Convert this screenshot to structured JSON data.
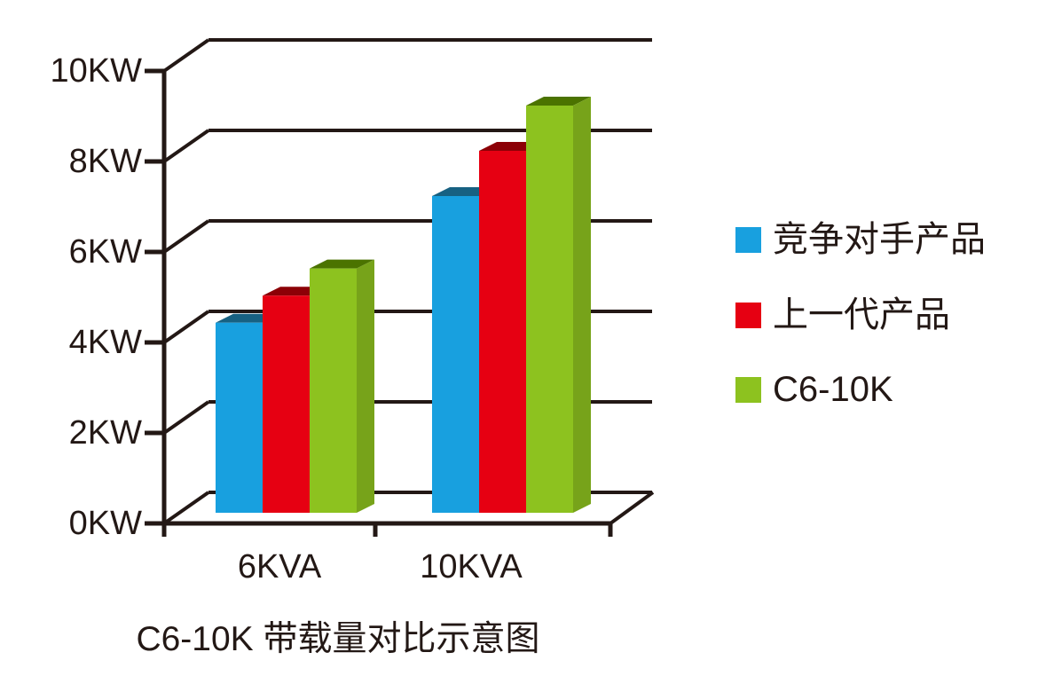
{
  "chart_data": {
    "type": "bar",
    "style": "3d-perspective-bars",
    "title": "C6-10K 带载量对比示意图",
    "categories": [
      "6KVA",
      "10KVA"
    ],
    "series": [
      {
        "name": "竞争对手产品",
        "values": [
          4.2,
          7.0
        ],
        "color": "#18A0DF",
        "top_color": "#176182",
        "side_color": "#1178A8"
      },
      {
        "name": "上一代产品",
        "values": [
          4.8,
          8.0
        ],
        "color": "#E60012",
        "top_color": "#8C0006",
        "side_color": "#B8000E"
      },
      {
        "name": "C6-10K",
        "values": [
          5.4,
          9.0
        ],
        "color": "#8DC21F",
        "top_color": "#4B7300",
        "side_color": "#77A31A"
      }
    ],
    "yticks": [
      "10KW",
      "8KW",
      "6KW",
      "4KW",
      "2KW",
      "0KW"
    ],
    "ytick_values": [
      10,
      8,
      6,
      4,
      2,
      0
    ],
    "ylim": [
      0,
      10
    ],
    "unit": "KW",
    "grid": true,
    "legend_position": "right",
    "line_color": "#231815",
    "background": "#FFFFFF"
  }
}
